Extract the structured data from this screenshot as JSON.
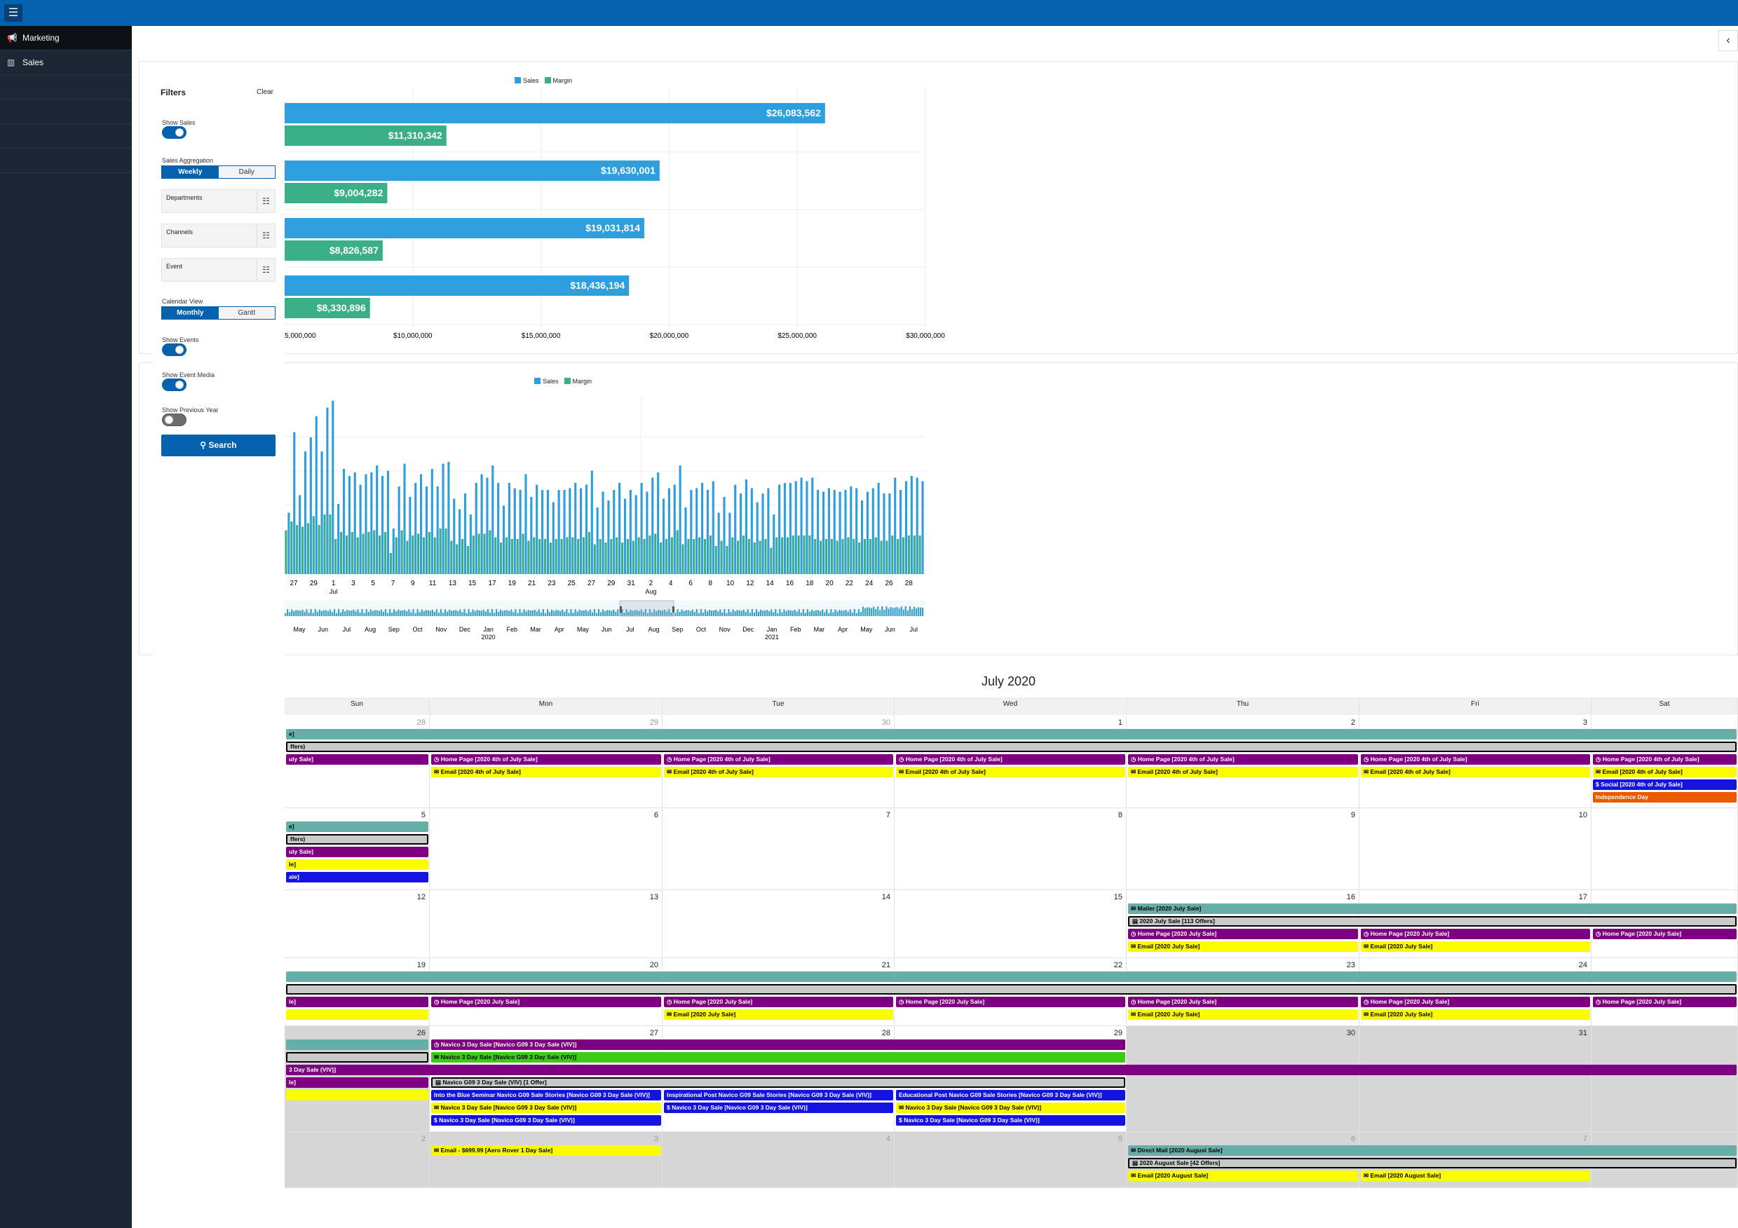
{
  "topbar": {
    "menu_icon": "menu-icon"
  },
  "sidebar": {
    "items": [
      {
        "label": "Marketing",
        "icon": "megaphone-icon"
      },
      {
        "label": "Sales",
        "icon": "bar-chart-icon"
      }
    ]
  },
  "filters": {
    "title": "Filters",
    "clear": "Clear",
    "show_sales": {
      "label": "Show Sales",
      "on": true
    },
    "sales_aggregation": {
      "label": "Sales Aggregation",
      "options": [
        "Weekly",
        "Daily"
      ],
      "selected": "Weekly"
    },
    "departments": "Departments",
    "channels": "Channels",
    "event": "Event",
    "calendar_view": {
      "label": "Calendar View",
      "options": [
        "Monthly",
        "Gantt"
      ],
      "selected": "Monthly"
    },
    "show_events": {
      "label": "Show Events",
      "on": true
    },
    "show_event_media": {
      "label": "Show Event Media",
      "on": true
    },
    "show_previous_year": {
      "label": "Show Previous Year",
      "on": false
    },
    "search": "Search"
  },
  "chart_data": [
    {
      "type": "bar",
      "orientation": "horizontal",
      "legend": [
        "Sales",
        "Margin"
      ],
      "colors": {
        "Sales": "#2f9ede",
        "Margin": "#3aae86"
      },
      "series": [
        {
          "name": "Sales",
          "values": [
            26083562,
            19630001,
            19031814,
            18436194
          ],
          "labels": [
            "$26,083,562",
            "$19,630,001",
            "$19,031,814",
            "$18,436,194"
          ]
        },
        {
          "name": "Margin",
          "values": [
            11310342,
            9004282,
            8826587,
            8330896
          ],
          "labels": [
            "$11,310,342",
            "$9,004,282",
            "$8,826,587",
            "$8,330,896"
          ]
        }
      ],
      "xlim": [
        5000000,
        30000000
      ],
      "xticks": [
        {
          "v": 5000000,
          "label": "5,000,000"
        },
        {
          "v": 10000000,
          "label": "$10,000,000"
        },
        {
          "v": 15000000,
          "label": "$15,000,000"
        },
        {
          "v": 20000000,
          "label": "$20,000,000"
        },
        {
          "v": 25000000,
          "label": "$25,000,000"
        },
        {
          "v": 30000000,
          "label": "$30,000,000"
        }
      ]
    },
    {
      "type": "bar",
      "legend": [
        "Sales",
        "Margin"
      ],
      "sales": [
        0.35,
        0.81,
        0.45,
        0.7,
        0.78,
        0.9,
        0.7,
        0.95,
        0.99,
        0.4,
        0.6,
        0.56,
        0.58,
        0.51,
        0.57,
        0.58,
        0.62,
        0.56,
        0.59,
        0.26,
        0.5,
        0.63,
        0.44,
        0.52,
        0.57,
        0.5,
        0.6,
        0.5,
        0.63,
        0.64,
        0.43,
        0.37,
        0.46,
        0.34,
        0.52,
        0.57,
        0.55,
        0.62,
        0.52,
        0.39,
        0.52,
        0.49,
        0.48,
        0.57,
        0.44,
        0.51,
        0.48,
        0.48,
        0.41,
        0.48,
        0.48,
        0.49,
        0.52,
        0.49,
        0.51,
        0.59,
        0.38,
        0.47,
        0.42,
        0.48,
        0.52,
        0.43,
        0.48,
        0.45,
        0.52,
        0.47,
        0.55,
        0.58,
        0.43,
        0.49,
        0.51,
        0.62,
        0.38,
        0.48,
        0.49,
        0.52,
        0.48,
        0.53,
        0.35,
        0.44,
        0.35,
        0.51,
        0.46,
        0.54,
        0.49,
        0.41,
        0.46,
        0.49,
        0.34,
        0.51,
        0.52,
        0.52,
        0.53,
        0.55,
        0.53,
        0.55,
        0.48,
        0.47,
        0.49,
        0.48,
        0.47,
        0.48,
        0.5,
        0.49,
        0.42,
        0.47,
        0.49,
        0.52,
        0.46,
        0.46,
        0.55,
        0.48,
        0.53,
        0.56,
        0.55,
        0.53
      ],
      "margin": [
        0.25,
        0.3,
        0.28,
        0.27,
        0.29,
        0.33,
        0.28,
        0.34,
        0.34,
        0.2,
        0.24,
        0.22,
        0.24,
        0.21,
        0.23,
        0.24,
        0.25,
        0.22,
        0.24,
        0.12,
        0.21,
        0.25,
        0.19,
        0.22,
        0.23,
        0.21,
        0.24,
        0.21,
        0.26,
        0.26,
        0.19,
        0.17,
        0.2,
        0.16,
        0.22,
        0.23,
        0.23,
        0.25,
        0.21,
        0.18,
        0.21,
        0.2,
        0.2,
        0.23,
        0.19,
        0.21,
        0.2,
        0.2,
        0.18,
        0.2,
        0.2,
        0.21,
        0.21,
        0.2,
        0.21,
        0.24,
        0.17,
        0.2,
        0.18,
        0.2,
        0.21,
        0.18,
        0.2,
        0.19,
        0.21,
        0.2,
        0.22,
        0.23,
        0.18,
        0.2,
        0.21,
        0.25,
        0.17,
        0.2,
        0.2,
        0.21,
        0.2,
        0.22,
        0.16,
        0.19,
        0.16,
        0.21,
        0.19,
        0.22,
        0.2,
        0.18,
        0.19,
        0.2,
        0.15,
        0.21,
        0.21,
        0.21,
        0.22,
        0.22,
        0.22,
        0.22,
        0.2,
        0.19,
        0.2,
        0.2,
        0.19,
        0.2,
        0.21,
        0.2,
        0.18,
        0.2,
        0.2,
        0.21,
        0.19,
        0.19,
        0.22,
        0.2,
        0.21,
        0.22,
        0.22,
        0.22
      ],
      "xticks": [
        "27",
        "29",
        "1",
        "3",
        "5",
        "7",
        "9",
        "11",
        "13",
        "15",
        "17",
        "19",
        "21",
        "23",
        "25",
        "27",
        "29",
        "31",
        "2",
        "4",
        "6",
        "8",
        "10",
        "12",
        "14",
        "16",
        "18",
        "20",
        "22",
        "24",
        "26",
        "28"
      ],
      "month_labels": [
        {
          "label": "Jul",
          "tick": 2
        },
        {
          "label": "Aug",
          "tick": 18
        }
      ],
      "navigator": [
        "May",
        "Jun",
        "Jul",
        "Aug",
        "Sep",
        "Oct",
        "Nov",
        "Dec",
        "Jan",
        "Feb",
        "Mar",
        "Apr",
        "May",
        "Jun",
        "Jul",
        "Aug",
        "Sep",
        "Oct",
        "Nov",
        "Dec",
        "Jan",
        "Feb",
        "Mar",
        "Apr",
        "May",
        "Jun",
        "Jul"
      ],
      "navigator_years": [
        {
          "label": "2020",
          "tick": 8
        },
        {
          "label": "2021",
          "tick": 20
        }
      ]
    }
  ],
  "calendar": {
    "title": "July 2020",
    "days": [
      "Sun",
      "Mon",
      "Tue",
      "Wed",
      "Thu",
      "Fri",
      "Sat"
    ],
    "weeks": [
      {
        "nums": [
          "28",
          "29",
          "30",
          "1",
          "2",
          "3",
          ""
        ],
        "out": [
          true,
          true,
          true,
          false,
          false,
          false,
          false
        ],
        "gray": []
      },
      {
        "nums": [
          "5",
          "6",
          "7",
          "8",
          "9",
          "10",
          ""
        ],
        "out": [],
        "gray": []
      },
      {
        "nums": [
          "12",
          "13",
          "14",
          "15",
          "16",
          "17",
          ""
        ],
        "out": [],
        "gray": []
      },
      {
        "nums": [
          "19",
          "20",
          "21",
          "22",
          "23",
          "24",
          ""
        ],
        "out": [],
        "gray": []
      },
      {
        "nums": [
          "26",
          "27",
          "28",
          "29",
          "30",
          "31",
          ""
        ],
        "out": [],
        "gray": [
          0,
          4,
          5,
          6
        ]
      },
      {
        "nums": [
          "2",
          "3",
          "4",
          "5",
          "6",
          "7",
          ""
        ],
        "out": [
          true,
          true,
          true,
          true,
          true,
          true,
          true
        ],
        "gray": [
          0,
          1,
          2,
          3,
          4,
          5,
          6
        ]
      }
    ],
    "events": [
      {
        "w": 0,
        "r": 0,
        "c1": 0,
        "c2": 7,
        "color": "teal",
        "text": "e]"
      },
      {
        "w": 0,
        "r": 1,
        "c1": 0,
        "c2": 7,
        "color": "silver",
        "text": "ffers)"
      },
      {
        "w": 0,
        "r": 2,
        "c1": 0,
        "c2": 1,
        "color": "purple",
        "text": "uly Sale]"
      },
      {
        "w": 0,
        "r": 2,
        "c1": 1,
        "c2": 2,
        "color": "purple",
        "text": "◷ Home Page [2020 4th of July Sale]"
      },
      {
        "w": 0,
        "r": 2,
        "c1": 2,
        "c2": 3,
        "color": "purple",
        "text": "◷ Home Page [2020 4th of July Sale]"
      },
      {
        "w": 0,
        "r": 2,
        "c1": 3,
        "c2": 4,
        "color": "purple",
        "text": "◷ Home Page [2020 4th of July Sale]"
      },
      {
        "w": 0,
        "r": 2,
        "c1": 4,
        "c2": 5,
        "color": "purple",
        "text": "◷ Home Page [2020 4th of July Sale]"
      },
      {
        "w": 0,
        "r": 2,
        "c1": 5,
        "c2": 6,
        "color": "purple",
        "text": "◷ Home Page [2020 4th of July Sale]"
      },
      {
        "w": 0,
        "r": 2,
        "c1": 6,
        "c2": 7,
        "color": "purple",
        "text": "◷ Home Page [2020 4th of July Sale]"
      },
      {
        "w": 0,
        "r": 3,
        "c1": 1,
        "c2": 2,
        "color": "yellow",
        "text": "✉ Email [2020 4th of July Sale]"
      },
      {
        "w": 0,
        "r": 3,
        "c1": 2,
        "c2": 3,
        "color": "yellow",
        "text": "✉ Email [2020 4th of July Sale]"
      },
      {
        "w": 0,
        "r": 3,
        "c1": 3,
        "c2": 4,
        "color": "yellow",
        "text": "✉ Email [2020 4th of July Sale]"
      },
      {
        "w": 0,
        "r": 3,
        "c1": 4,
        "c2": 5,
        "color": "yellow",
        "text": "✉ Email [2020 4th of July Sale]"
      },
      {
        "w": 0,
        "r": 3,
        "c1": 5,
        "c2": 6,
        "color": "yellow",
        "text": "✉ Email [2020 4th of July Sale]"
      },
      {
        "w": 0,
        "r": 3,
        "c1": 6,
        "c2": 7,
        "color": "yellow",
        "text": "✉ Email [2020 4th of July Sale]"
      },
      {
        "w": 0,
        "r": 4,
        "c1": 6,
        "c2": 7,
        "color": "blue",
        "text": "$ Social [2020 4th of July Sale]"
      },
      {
        "w": 0,
        "r": 5,
        "c1": 6,
        "c2": 7,
        "color": "orange",
        "text": "Independence Day"
      },
      {
        "w": 1,
        "r": 0,
        "c1": 0,
        "c2": 1,
        "color": "teal",
        "text": "e]"
      },
      {
        "w": 1,
        "r": 1,
        "c1": 0,
        "c2": 1,
        "color": "silver",
        "text": "ffers)"
      },
      {
        "w": 1,
        "r": 2,
        "c1": 0,
        "c2": 1,
        "color": "purple",
        "text": "uly Sale]"
      },
      {
        "w": 1,
        "r": 3,
        "c1": 0,
        "c2": 1,
        "color": "yellow",
        "text": "le]"
      },
      {
        "w": 1,
        "r": 4,
        "c1": 0,
        "c2": 1,
        "color": "blue",
        "text": "ale]"
      },
      {
        "w": 2,
        "r": 0,
        "c1": 4,
        "c2": 7,
        "color": "teal",
        "text": "✉ Mailer [2020 July Sale]"
      },
      {
        "w": 2,
        "r": 1,
        "c1": 4,
        "c2": 7,
        "color": "silver",
        "text": "▤ 2020 July Sale [113 Offers]"
      },
      {
        "w": 2,
        "r": 2,
        "c1": 4,
        "c2": 5,
        "color": "purple",
        "text": "◷ Home Page [2020 July Sale]"
      },
      {
        "w": 2,
        "r": 2,
        "c1": 5,
        "c2": 6,
        "color": "purple",
        "text": "◷ Home Page [2020 July Sale]"
      },
      {
        "w": 2,
        "r": 2,
        "c1": 6,
        "c2": 7,
        "color": "purple",
        "text": "◷ Home Page [2020 July Sale]"
      },
      {
        "w": 2,
        "r": 3,
        "c1": 4,
        "c2": 5,
        "color": "yellow",
        "text": "✉ Email [2020 July Sale]"
      },
      {
        "w": 2,
        "r": 3,
        "c1": 5,
        "c2": 6,
        "color": "yellow",
        "text": "✉ Email [2020 July Sale]"
      },
      {
        "w": 3,
        "r": 0,
        "c1": 0,
        "c2": 7,
        "color": "teal",
        "text": ""
      },
      {
        "w": 3,
        "r": 1,
        "c1": 0,
        "c2": 7,
        "color": "silver",
        "text": ""
      },
      {
        "w": 3,
        "r": 2,
        "c1": 0,
        "c2": 1,
        "color": "purple",
        "text": "le]"
      },
      {
        "w": 3,
        "r": 2,
        "c1": 1,
        "c2": 2,
        "color": "purple",
        "text": "◷ Home Page [2020 July Sale]"
      },
      {
        "w": 3,
        "r": 2,
        "c1": 2,
        "c2": 3,
        "color": "purple",
        "text": "◷ Home Page [2020 July Sale]"
      },
      {
        "w": 3,
        "r": 2,
        "c1": 3,
        "c2": 4,
        "color": "purple",
        "text": "◷ Home Page [2020 July Sale]"
      },
      {
        "w": 3,
        "r": 2,
        "c1": 4,
        "c2": 5,
        "color": "purple",
        "text": "◷ Home Page [2020 July Sale]"
      },
      {
        "w": 3,
        "r": 2,
        "c1": 5,
        "c2": 6,
        "color": "purple",
        "text": "◷ Home Page [2020 July Sale]"
      },
      {
        "w": 3,
        "r": 2,
        "c1": 6,
        "c2": 7,
        "color": "purple",
        "text": "◷ Home Page [2020 July Sale]"
      },
      {
        "w": 3,
        "r": 3,
        "c1": 0,
        "c2": 1,
        "color": "yellow",
        "text": ""
      },
      {
        "w": 3,
        "r": 3,
        "c1": 2,
        "c2": 3,
        "color": "yellow",
        "text": "✉ Email [2020 July Sale]"
      },
      {
        "w": 3,
        "r": 3,
        "c1": 4,
        "c2": 5,
        "color": "yellow",
        "text": "✉ Email [2020 July Sale]"
      },
      {
        "w": 3,
        "r": 3,
        "c1": 5,
        "c2": 6,
        "color": "yellow",
        "text": "✉ Email [2020 July Sale]"
      },
      {
        "w": 4,
        "r": 0,
        "c1": 0,
        "c2": 1,
        "color": "teal",
        "text": ""
      },
      {
        "w": 4,
        "r": 0,
        "c1": 1,
        "c2": 4,
        "color": "purple",
        "text": "◷ Navico 3 Day Sale [Navico G09 3 Day Sale (VIV)]"
      },
      {
        "w": 4,
        "r": 1,
        "c1": 0,
        "c2": 1,
        "color": "silver",
        "text": ""
      },
      {
        "w": 4,
        "r": 1,
        "c1": 1,
        "c2": 4,
        "color": "green",
        "text": "✉ Navico 3 Day Sale [Navico G09 3 Day Sale (VIV)]"
      },
      {
        "w": 4,
        "r": 2,
        "c1": 0,
        "c2": 7,
        "color": "purple",
        "text": "3 Day Sale (VIV)]"
      },
      {
        "w": 4,
        "r": 3,
        "c1": 0,
        "c2": 1,
        "color": "purple",
        "text": "le]"
      },
      {
        "w": 4,
        "r": 3,
        "c1": 1,
        "c2": 4,
        "color": "silver",
        "text": "▤ Navico G09 3 Day Sale (VIV) [1 Offer]"
      },
      {
        "w": 4,
        "r": 4,
        "c1": 0,
        "c2": 1,
        "color": "yellow",
        "text": ""
      },
      {
        "w": 4,
        "r": 4,
        "c1": 1,
        "c2": 2,
        "color": "blue",
        "text": "Into the Blue Seminar Navico G09 Sale Stories [Navico G09 3 Day Sale (VIV)]"
      },
      {
        "w": 4,
        "r": 4,
        "c1": 2,
        "c2": 3,
        "color": "blue",
        "text": "Inspirational Post Navico G09 Sale Stories [Navico G09 3 Day Sale (VIV)]"
      },
      {
        "w": 4,
        "r": 4,
        "c1": 3,
        "c2": 4,
        "color": "blue",
        "text": "Educational Post Navico G09 Sale Stories [Navico G09 3 Day Sale (VIV)]"
      },
      {
        "w": 4,
        "r": 5,
        "c1": 1,
        "c2": 2,
        "color": "yellow",
        "text": "✉ Navico 3 Day Sale [Navico G09 3 Day Sale (VIV)]"
      },
      {
        "w": 4,
        "r": 5,
        "c1": 2,
        "c2": 3,
        "color": "blue",
        "text": "$ Navico 3 Day Sale [Navico G09 3 Day Sale (VIV)]"
      },
      {
        "w": 4,
        "r": 5,
        "c1": 3,
        "c2": 4,
        "color": "yellow",
        "text": "✉ Navico 3 Day Sale [Navico G09 3 Day Sale (VIV)]"
      },
      {
        "w": 4,
        "r": 6,
        "c1": 1,
        "c2": 2,
        "color": "blue",
        "text": "$ Navico 3 Day Sale [Navico G09 3 Day Sale (VIV)]"
      },
      {
        "w": 4,
        "r": 6,
        "c1": 3,
        "c2": 4,
        "color": "blue",
        "text": "$ Navico 3 Day Sale [Navico G09 3 Day Sale (VIV)]"
      },
      {
        "w": 5,
        "r": 0,
        "c1": 4,
        "c2": 7,
        "color": "teal",
        "text": "✉ Direct Mail [2020 August Sale]"
      },
      {
        "w": 5,
        "r": 0,
        "c1": 1,
        "c2": 2,
        "color": "yellow",
        "text": "✉ Email - $699.99 [Aero Rover 1 Day Sale]"
      },
      {
        "w": 5,
        "r": 1,
        "c1": 4,
        "c2": 7,
        "color": "silver",
        "text": "▤ 2020 August Sale [42 Offers]"
      },
      {
        "w": 5,
        "r": 2,
        "c1": 4,
        "c2": 5,
        "color": "yellow",
        "text": "✉ Email [2020 August Sale]"
      },
      {
        "w": 5,
        "r": 2,
        "c1": 5,
        "c2": 6,
        "color": "yellow",
        "text": "✉ Email [2020 August Sale]"
      }
    ]
  }
}
